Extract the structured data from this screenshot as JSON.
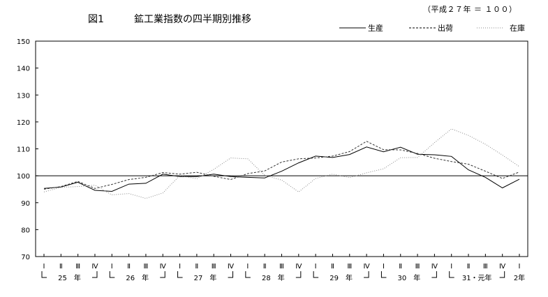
{
  "header": {
    "figure_number": "図1",
    "title": "鉱工業指数の四半期別推移",
    "base_note": "（平成２７年 ＝ １００）"
  },
  "chart_data": {
    "type": "line",
    "title": "鉱工業指数の四半期別推移",
    "ylim": [
      70,
      150
    ],
    "yticks": [
      70,
      80,
      90,
      100,
      110,
      120,
      130,
      140,
      150
    ],
    "reference_line": 100,
    "grid": false,
    "legend_position": "top-right",
    "quarter_labels": [
      "Ⅰ",
      "Ⅱ",
      "Ⅲ",
      "Ⅳ",
      "Ⅰ",
      "Ⅱ",
      "Ⅲ",
      "Ⅳ",
      "Ⅰ",
      "Ⅱ",
      "Ⅲ",
      "Ⅳ",
      "Ⅰ",
      "Ⅱ",
      "Ⅲ",
      "Ⅳ",
      "Ⅰ",
      "Ⅱ",
      "Ⅲ",
      "Ⅳ",
      "Ⅰ",
      "Ⅱ",
      "Ⅲ",
      "Ⅳ",
      "Ⅰ",
      "Ⅱ",
      "Ⅲ",
      "Ⅳ",
      "Ⅰ"
    ],
    "year_groups": [
      {
        "label": "25　年",
        "start": 0,
        "end": 3
      },
      {
        "label": "26　年",
        "start": 4,
        "end": 7
      },
      {
        "label": "27　年",
        "start": 8,
        "end": 11
      },
      {
        "label": "28　年",
        "start": 12,
        "end": 15
      },
      {
        "label": "29　年",
        "start": 16,
        "end": 19
      },
      {
        "label": "30　年",
        "start": 20,
        "end": 23
      },
      {
        "label": "31・元年",
        "start": 24,
        "end": 27
      },
      {
        "label": "2年",
        "start": 28,
        "end": 28
      }
    ],
    "series": [
      {
        "name": "生産",
        "style": "solid",
        "values": [
          95.3,
          95.8,
          97.6,
          94.6,
          94.2,
          96.9,
          97.2,
          100.6,
          99.7,
          99.7,
          100.6,
          99.7,
          99.4,
          99.2,
          101.7,
          104.8,
          107.3,
          106.8,
          107.9,
          110.7,
          108.9,
          110.6,
          108.0,
          107.8,
          107.2,
          102.2,
          99.4,
          95.5,
          98.7
        ]
      },
      {
        "name": "出荷",
        "style": "dashed",
        "values": [
          95.0,
          96.0,
          97.9,
          95.3,
          96.8,
          98.6,
          99.4,
          101.2,
          100.6,
          101.3,
          99.8,
          98.6,
          100.8,
          101.8,
          105.1,
          106.3,
          106.6,
          107.3,
          109.0,
          112.8,
          109.7,
          109.6,
          108.3,
          106.5,
          105.3,
          104.3,
          101.7,
          99.0,
          101.4
        ]
      },
      {
        "name": "在庫",
        "style": "dotted",
        "values": [
          94.0,
          95.7,
          96.0,
          96.5,
          92.9,
          93.4,
          91.6,
          93.6,
          100.1,
          98.9,
          102.4,
          106.6,
          106.3,
          100.2,
          98.4,
          94.0,
          99.0,
          100.6,
          99.3,
          101.1,
          102.6,
          106.7,
          106.8,
          112.3,
          117.4,
          115.0,
          111.7,
          107.7,
          103.4
        ]
      }
    ]
  },
  "colors": {
    "axis": "#000000",
    "production": "#000000",
    "shipments": "#333333",
    "inventory": "#8a8a8a"
  }
}
